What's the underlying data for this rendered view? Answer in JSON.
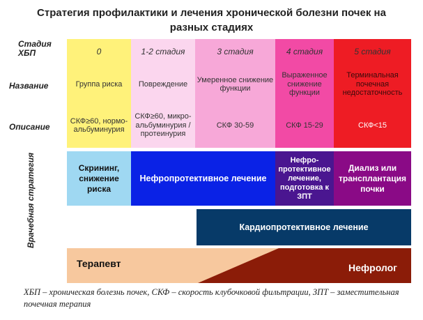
{
  "title": "Стратегия профилактики и лечения хронической болезни почек на разных стадиях",
  "row_labels": {
    "stage": "Стадия ХБП",
    "name": "Название",
    "description": "Описание",
    "strategy": "Врачебная стратегия"
  },
  "stages": [
    {
      "stage": "0",
      "name": "Группа риска",
      "description": "СКФ≥60, нормо-альбуминурия",
      "color": "#fff27a"
    },
    {
      "stage": "1-2 стадия",
      "name": "Повреждение",
      "description": "СКФ≥60, микро-альбуминурия / протеинурия",
      "color": "#fbd6ee"
    },
    {
      "stage": "3 стадия",
      "name": "Умеренное снижение функции",
      "description": "СКФ 30-59",
      "color": "#f7a8d8"
    },
    {
      "stage": "4 стадия",
      "name": "Выраженное снижение функции",
      "description": "СКФ 15-29",
      "color": "#f24aa5"
    },
    {
      "stage": "5 стадия",
      "name": "Терминальная почечная недостаточность",
      "description": "СКФ<15",
      "color": "#ee1c24"
    }
  ],
  "strategy": {
    "screening": {
      "text": "Скрининг, снижение риска",
      "color": "#9fd8f2"
    },
    "nephroprotective": {
      "text": "Нефропротективное лечение",
      "color": "#0a22e6"
    },
    "nephro_prep": {
      "text": "Нефро-протективное лечение, подготовка к ЗПТ",
      "color": "#4a1690"
    },
    "dialysis": {
      "text": "Диализ или трансплантация почки",
      "color": "#8a0a86"
    },
    "cardioprotective": {
      "text": "Кардиопротективное лечение",
      "color": "#073a68"
    },
    "therapist": {
      "text": "Терапевт",
      "color": "#f7c89e"
    },
    "nephrologist": {
      "text": "Нефролог",
      "color": "#8b1c08"
    }
  },
  "footnote": "ХБП – хроническая болезнь почек, СКФ – скорость клубочковой фильтрации, ЗПТ – заместительная почечная терапия"
}
